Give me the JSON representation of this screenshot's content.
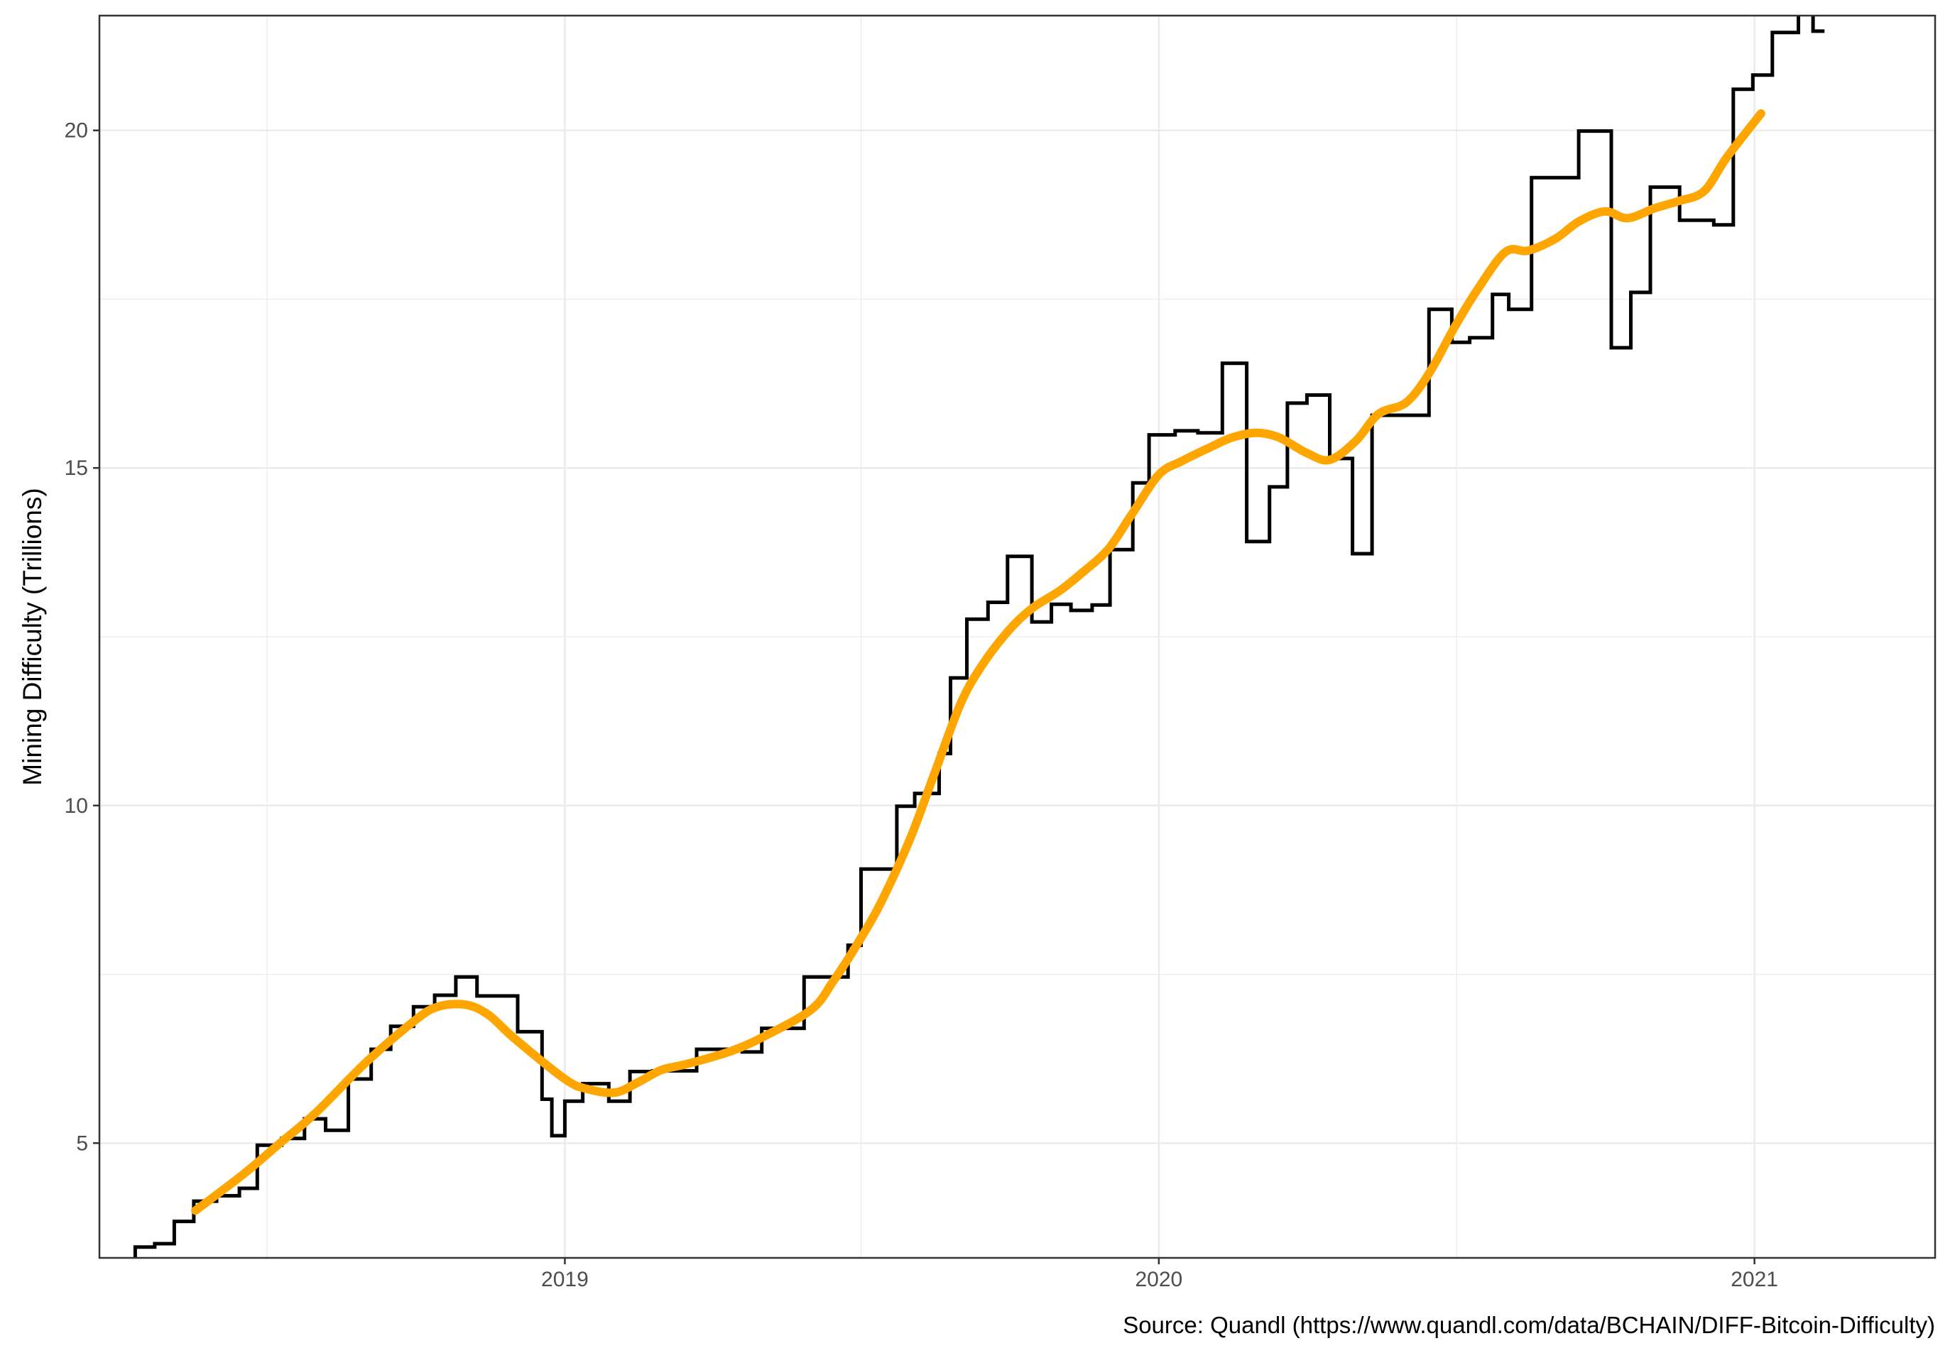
{
  "chart_data": {
    "type": "line",
    "title": "",
    "xlabel": "",
    "ylabel": "Mining Difficulty (Trillions)",
    "caption": "Source: Quandl (https://www.quandl.com/data/BCHAIN/DIFF-Bitcoin-Difficulty)",
    "xlim": [
      "2018-03-21",
      "2021-04-22"
    ],
    "ylim": [
      3.3,
      21.7
    ],
    "x_ticks": [
      "2019",
      "2020",
      "2021"
    ],
    "y_ticks": [
      5,
      10,
      15,
      20
    ],
    "grid": true,
    "legend": "none",
    "colors": {
      "difficulty": "#000000",
      "trend": "#FFA500",
      "grid": "#EBEBEB",
      "panel_border": "#333333"
    },
    "series": [
      {
        "kind": "step",
        "color": "#000000",
        "points": [
          [
            "2018-04-12",
            3.29
          ],
          [
            "2018-04-12",
            3.46
          ],
          [
            "2018-04-24",
            3.46
          ],
          [
            "2018-04-24",
            3.51
          ],
          [
            "2018-05-06",
            3.51
          ],
          [
            "2018-05-06",
            3.84
          ],
          [
            "2018-05-18",
            3.84
          ],
          [
            "2018-05-18",
            4.14
          ],
          [
            "2018-06-01",
            4.14
          ],
          [
            "2018-06-01",
            4.22
          ],
          [
            "2018-06-15",
            4.22
          ],
          [
            "2018-06-15",
            4.33
          ],
          [
            "2018-06-26",
            4.33
          ],
          [
            "2018-06-26",
            4.97
          ],
          [
            "2018-07-11",
            4.97
          ],
          [
            "2018-07-11",
            5.07
          ],
          [
            "2018-07-25",
            5.07
          ],
          [
            "2018-07-25",
            5.36
          ],
          [
            "2018-08-07",
            5.36
          ],
          [
            "2018-08-07",
            5.19
          ],
          [
            "2018-08-21",
            5.19
          ],
          [
            "2018-08-21",
            5.95
          ],
          [
            "2018-09-04",
            5.95
          ],
          [
            "2018-09-04",
            6.39
          ],
          [
            "2018-09-16",
            6.39
          ],
          [
            "2018-09-16",
            6.73
          ],
          [
            "2018-09-30",
            6.73
          ],
          [
            "2018-09-30",
            7.02
          ],
          [
            "2018-10-13",
            7.02
          ],
          [
            "2018-10-13",
            7.19
          ],
          [
            "2018-10-26",
            7.19
          ],
          [
            "2018-10-26",
            7.46
          ],
          [
            "2018-11-08",
            7.46
          ],
          [
            "2018-11-08",
            7.18
          ],
          [
            "2018-12-03",
            7.18
          ],
          [
            "2018-12-03",
            6.65
          ],
          [
            "2018-12-18",
            6.65
          ],
          [
            "2018-12-18",
            5.65
          ],
          [
            "2018-12-24",
            5.65
          ],
          [
            "2018-12-24",
            5.11
          ],
          [
            "2019-01-01",
            5.11
          ],
          [
            "2019-01-01",
            5.62
          ],
          [
            "2019-01-12",
            5.62
          ],
          [
            "2019-01-12",
            5.88
          ],
          [
            "2019-01-28",
            5.88
          ],
          [
            "2019-01-28",
            5.62
          ],
          [
            "2019-02-10",
            5.62
          ],
          [
            "2019-02-10",
            6.06
          ],
          [
            "2019-02-24",
            6.06
          ],
          [
            "2019-02-24",
            6.07
          ],
          [
            "2019-03-08",
            6.07
          ],
          [
            "2019-03-08",
            6.07
          ],
          [
            "2019-03-23",
            6.07
          ],
          [
            "2019-03-23",
            6.39
          ],
          [
            "2019-04-05",
            6.39
          ],
          [
            "2019-04-05",
            6.39
          ],
          [
            "2019-04-20",
            6.39
          ],
          [
            "2019-04-20",
            6.35
          ],
          [
            "2019-05-02",
            6.35
          ],
          [
            "2019-05-02",
            6.7
          ],
          [
            "2019-05-15",
            6.7
          ],
          [
            "2019-05-15",
            6.7
          ],
          [
            "2019-05-28",
            6.7
          ],
          [
            "2019-05-28",
            7.46
          ],
          [
            "2019-06-24",
            7.46
          ],
          [
            "2019-06-24",
            7.93
          ],
          [
            "2019-07-02",
            7.93
          ],
          [
            "2019-07-02",
            9.06
          ],
          [
            "2019-07-24",
            9.06
          ],
          [
            "2019-07-24",
            9.99
          ],
          [
            "2019-08-04",
            9.99
          ],
          [
            "2019-08-04",
            10.18
          ],
          [
            "2019-08-19",
            10.18
          ],
          [
            "2019-08-19",
            10.77
          ],
          [
            "2019-08-26",
            10.77
          ],
          [
            "2019-08-26",
            11.89
          ],
          [
            "2019-09-05",
            11.89
          ],
          [
            "2019-09-05",
            12.76
          ],
          [
            "2019-09-18",
            12.76
          ],
          [
            "2019-09-18",
            13.01
          ],
          [
            "2019-09-30",
            13.01
          ],
          [
            "2019-09-30",
            13.69
          ],
          [
            "2019-10-15",
            13.69
          ],
          [
            "2019-10-15",
            12.72
          ],
          [
            "2019-10-27",
            12.72
          ],
          [
            "2019-10-27",
            12.98
          ],
          [
            "2019-11-08",
            12.98
          ],
          [
            "2019-11-08",
            12.89
          ],
          [
            "2019-11-21",
            12.89
          ],
          [
            "2019-11-21",
            12.97
          ],
          [
            "2019-12-02",
            12.97
          ],
          [
            "2019-12-02",
            13.79
          ],
          [
            "2019-12-16",
            13.79
          ],
          [
            "2019-12-16",
            14.78
          ],
          [
            "2019-12-26",
            14.78
          ],
          [
            "2019-12-26",
            15.49
          ],
          [
            "2020-01-11",
            15.49
          ],
          [
            "2020-01-11",
            15.55
          ],
          [
            "2020-01-25",
            15.55
          ],
          [
            "2020-01-25",
            15.52
          ],
          [
            "2020-02-09",
            15.52
          ],
          [
            "2020-02-09",
            16.55
          ],
          [
            "2020-02-24",
            16.55
          ],
          [
            "2020-02-24",
            13.91
          ],
          [
            "2020-03-09",
            13.91
          ],
          [
            "2020-03-09",
            14.72
          ],
          [
            "2020-03-20",
            14.72
          ],
          [
            "2020-03-20",
            15.96
          ],
          [
            "2020-04-01",
            15.96
          ],
          [
            "2020-04-01",
            16.08
          ],
          [
            "2020-04-15",
            16.08
          ],
          [
            "2020-04-15",
            15.14
          ],
          [
            "2020-04-29",
            15.14
          ],
          [
            "2020-04-29",
            13.73
          ],
          [
            "2020-05-11",
            13.73
          ],
          [
            "2020-05-11",
            15.78
          ],
          [
            "2020-06-15",
            15.78
          ],
          [
            "2020-06-15",
            17.35
          ],
          [
            "2020-06-29",
            17.35
          ],
          [
            "2020-06-29",
            16.86
          ],
          [
            "2020-07-10",
            16.86
          ],
          [
            "2020-07-10",
            16.93
          ],
          [
            "2020-07-24",
            16.93
          ],
          [
            "2020-07-24",
            17.57
          ],
          [
            "2020-08-03",
            17.57
          ],
          [
            "2020-08-03",
            17.35
          ],
          [
            "2020-08-17",
            17.35
          ],
          [
            "2020-08-17",
            19.3
          ],
          [
            "2020-09-15",
            19.3
          ],
          [
            "2020-09-15",
            19.99
          ],
          [
            "2020-10-05",
            19.99
          ],
          [
            "2020-10-05",
            16.78
          ],
          [
            "2020-10-17",
            16.78
          ],
          [
            "2020-10-17",
            17.6
          ],
          [
            "2020-10-29",
            17.6
          ],
          [
            "2020-10-29",
            19.16
          ],
          [
            "2020-11-16",
            19.16
          ],
          [
            "2020-11-16",
            18.67
          ],
          [
            "2020-12-07",
            18.67
          ],
          [
            "2020-12-07",
            18.6
          ],
          [
            "2020-12-19",
            18.6
          ],
          [
            "2020-12-19",
            20.61
          ],
          [
            "2020-12-31",
            20.61
          ],
          [
            "2020-12-31",
            20.82
          ],
          [
            "2021-01-12",
            20.82
          ],
          [
            "2021-01-12",
            21.45
          ],
          [
            "2021-01-28",
            21.45
          ],
          [
            "2021-01-28",
            21.72
          ],
          [
            "2021-02-06",
            21.72
          ],
          [
            "2021-02-06",
            21.47
          ],
          [
            "2021-02-13",
            21.47
          ]
        ]
      },
      {
        "kind": "smooth",
        "color": "#FFA500",
        "points": [
          [
            "2018-05-19",
            4.0
          ],
          [
            "2018-06-18",
            4.55
          ],
          [
            "2018-07-10",
            5.0
          ],
          [
            "2018-08-01",
            5.45
          ],
          [
            "2018-09-01",
            6.2
          ],
          [
            "2018-10-01",
            6.82
          ],
          [
            "2018-10-15",
            7.02
          ],
          [
            "2018-11-01",
            7.05
          ],
          [
            "2018-11-15",
            6.9
          ],
          [
            "2018-12-01",
            6.55
          ],
          [
            "2019-01-01",
            5.95
          ],
          [
            "2019-01-15",
            5.8
          ],
          [
            "2019-02-01",
            5.75
          ],
          [
            "2019-02-15",
            5.9
          ],
          [
            "2019-03-01",
            6.08
          ],
          [
            "2019-03-15",
            6.16
          ],
          [
            "2019-04-01",
            6.27
          ],
          [
            "2019-04-15",
            6.38
          ],
          [
            "2019-05-01",
            6.55
          ],
          [
            "2019-06-01",
            6.97
          ],
          [
            "2019-06-15",
            7.4
          ],
          [
            "2019-07-01",
            8.0
          ],
          [
            "2019-07-15",
            8.6
          ],
          [
            "2019-08-01",
            9.5
          ],
          [
            "2019-08-15",
            10.4
          ],
          [
            "2019-09-01",
            11.5
          ],
          [
            "2019-09-15",
            12.1
          ],
          [
            "2019-10-01",
            12.6
          ],
          [
            "2019-10-15",
            12.92
          ],
          [
            "2019-11-01",
            13.18
          ],
          [
            "2019-11-15",
            13.45
          ],
          [
            "2019-12-01",
            13.8
          ],
          [
            "2019-12-15",
            14.3
          ],
          [
            "2020-01-01",
            14.9
          ],
          [
            "2020-01-15",
            15.1
          ],
          [
            "2020-02-01",
            15.3
          ],
          [
            "2020-02-15",
            15.45
          ],
          [
            "2020-03-01",
            15.52
          ],
          [
            "2020-03-15",
            15.45
          ],
          [
            "2020-04-01",
            15.22
          ],
          [
            "2020-04-15",
            15.12
          ],
          [
            "2020-05-01",
            15.4
          ],
          [
            "2020-05-15",
            15.8
          ],
          [
            "2020-06-01",
            15.97
          ],
          [
            "2020-06-15",
            16.4
          ],
          [
            "2020-07-01",
            17.1
          ],
          [
            "2020-07-15",
            17.65
          ],
          [
            "2020-08-01",
            18.2
          ],
          [
            "2020-08-15",
            18.22
          ],
          [
            "2020-09-01",
            18.4
          ],
          [
            "2020-09-15",
            18.65
          ],
          [
            "2020-10-01",
            18.8
          ],
          [
            "2020-10-15",
            18.7
          ],
          [
            "2020-11-01",
            18.85
          ],
          [
            "2020-11-15",
            18.95
          ],
          [
            "2020-12-01",
            19.1
          ],
          [
            "2020-12-15",
            19.6
          ],
          [
            "2021-01-05",
            20.25
          ]
        ]
      }
    ]
  }
}
